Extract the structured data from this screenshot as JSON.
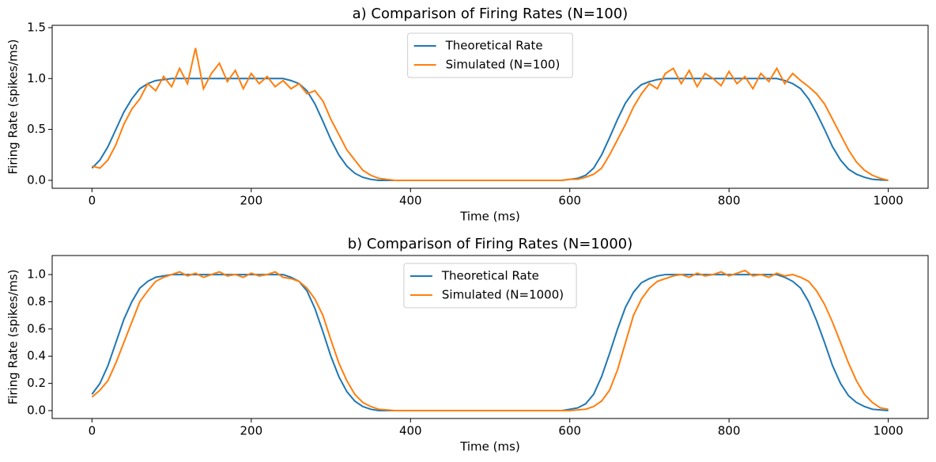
{
  "chart_data": [
    {
      "type": "line",
      "title": "a) Comparison of Firing Rates (N=100)",
      "xlabel": "Time (ms)",
      "ylabel": "Firing Rate (spikes/ms)",
      "x": [
        0,
        10,
        20,
        30,
        40,
        50,
        60,
        70,
        80,
        90,
        100,
        110,
        120,
        130,
        140,
        150,
        160,
        170,
        180,
        190,
        200,
        210,
        220,
        230,
        240,
        250,
        260,
        270,
        280,
        290,
        300,
        310,
        320,
        330,
        340,
        350,
        360,
        370,
        380,
        390,
        400,
        410,
        420,
        430,
        440,
        450,
        460,
        470,
        480,
        490,
        500,
        510,
        520,
        530,
        540,
        550,
        560,
        570,
        580,
        590,
        600,
        610,
        620,
        630,
        640,
        650,
        660,
        670,
        680,
        690,
        700,
        710,
        720,
        730,
        740,
        750,
        760,
        770,
        780,
        790,
        800,
        810,
        820,
        830,
        840,
        850,
        860,
        870,
        880,
        890,
        900,
        910,
        920,
        930,
        940,
        950,
        960,
        970,
        980,
        990,
        1000
      ],
      "series": [
        {
          "name": "Theoretical Rate",
          "color": "#1f77b4",
          "values": [
            0.12,
            0.2,
            0.33,
            0.5,
            0.67,
            0.8,
            0.9,
            0.95,
            0.98,
            0.99,
            1,
            1,
            1,
            1,
            1,
            1,
            1,
            1,
            1,
            1,
            1,
            1,
            1,
            1,
            1,
            0.98,
            0.95,
            0.88,
            0.75,
            0.58,
            0.4,
            0.25,
            0.14,
            0.07,
            0.03,
            0.01,
            0,
            0,
            0,
            0,
            0,
            0,
            0,
            0,
            0,
            0,
            0,
            0,
            0,
            0,
            0,
            0,
            0,
            0,
            0,
            0,
            0,
            0,
            0,
            0,
            0.01,
            0.02,
            0.05,
            0.12,
            0.25,
            0.42,
            0.6,
            0.76,
            0.87,
            0.94,
            0.97,
            0.99,
            1,
            1,
            1,
            1,
            1,
            1,
            1,
            1,
            1,
            1,
            1,
            1,
            1,
            1,
            1,
            0.98,
            0.95,
            0.9,
            0.8,
            0.66,
            0.5,
            0.33,
            0.2,
            0.11,
            0.06,
            0.03,
            0.01,
            0.005,
            0
          ]
        },
        {
          "name": "Simulated (N=100)",
          "color": "#ff7f0e",
          "values": [
            0.14,
            0.12,
            0.2,
            0.35,
            0.55,
            0.7,
            0.8,
            0.95,
            0.88,
            1.02,
            0.92,
            1.1,
            0.95,
            1.3,
            0.9,
            1.05,
            1.15,
            0.97,
            1.08,
            0.9,
            1.05,
            0.95,
            1.02,
            0.92,
            0.98,
            0.9,
            0.95,
            0.85,
            0.88,
            0.78,
            0.6,
            0.45,
            0.3,
            0.2,
            0.1,
            0.05,
            0.02,
            0.01,
            0,
            0,
            0,
            0,
            0,
            0,
            0,
            0,
            0,
            0,
            0,
            0,
            0,
            0,
            0,
            0,
            0,
            0,
            0,
            0,
            0,
            0,
            0.01,
            0.01,
            0.03,
            0.06,
            0.12,
            0.25,
            0.4,
            0.55,
            0.72,
            0.85,
            0.95,
            0.9,
            1.05,
            1.1,
            0.95,
            1.08,
            0.92,
            1.05,
            1,
            0.93,
            1.07,
            0.95,
            1.02,
            0.9,
            1.05,
            0.97,
            1.1,
            0.95,
            1.05,
            0.98,
            0.92,
            0.85,
            0.75,
            0.6,
            0.45,
            0.3,
            0.18,
            0.1,
            0.05,
            0.02,
            0
          ]
        }
      ],
      "xlim": [
        -50,
        1050
      ],
      "xticks": [
        0,
        200,
        400,
        600,
        800,
        1000
      ],
      "ylim": [
        -0.078,
        1.523
      ],
      "yticks": [
        {
          "value": 0,
          "label": "0.0"
        },
        0.5,
        {
          "value": 1,
          "label": "1.0"
        },
        {
          "value": 1.5,
          "label": "1.5"
        }
      ],
      "legend": "upper center",
      "grid": false
    },
    {
      "type": "line",
      "title": "b) Comparison of Firing Rates (N=1000)",
      "xlabel": "Time (ms)",
      "ylabel": "Firing Rate (spikes/ms)",
      "x": [
        0,
        10,
        20,
        30,
        40,
        50,
        60,
        70,
        80,
        90,
        100,
        110,
        120,
        130,
        140,
        150,
        160,
        170,
        180,
        190,
        200,
        210,
        220,
        230,
        240,
        250,
        260,
        270,
        280,
        290,
        300,
        310,
        320,
        330,
        340,
        350,
        360,
        370,
        380,
        390,
        400,
        410,
        420,
        430,
        440,
        450,
        460,
        470,
        480,
        490,
        500,
        510,
        520,
        530,
        540,
        550,
        560,
        570,
        580,
        590,
        600,
        610,
        620,
        630,
        640,
        650,
        660,
        670,
        680,
        690,
        700,
        710,
        720,
        730,
        740,
        750,
        760,
        770,
        780,
        790,
        800,
        810,
        820,
        830,
        840,
        850,
        860,
        870,
        880,
        890,
        900,
        910,
        920,
        930,
        940,
        950,
        960,
        970,
        980,
        990,
        1000
      ],
      "series": [
        {
          "name": "Theoretical Rate",
          "color": "#1f77b4",
          "values": [
            0.12,
            0.2,
            0.33,
            0.5,
            0.67,
            0.8,
            0.9,
            0.95,
            0.98,
            0.99,
            1,
            1,
            1,
            1,
            1,
            1,
            1,
            1,
            1,
            1,
            1,
            1,
            1,
            1,
            1,
            0.98,
            0.95,
            0.88,
            0.75,
            0.58,
            0.4,
            0.25,
            0.14,
            0.07,
            0.03,
            0.01,
            0,
            0,
            0,
            0,
            0,
            0,
            0,
            0,
            0,
            0,
            0,
            0,
            0,
            0,
            0,
            0,
            0,
            0,
            0,
            0,
            0,
            0,
            0,
            0,
            0.01,
            0.02,
            0.05,
            0.12,
            0.25,
            0.42,
            0.6,
            0.76,
            0.87,
            0.94,
            0.97,
            0.99,
            1,
            1,
            1,
            1,
            1,
            1,
            1,
            1,
            1,
            1,
            1,
            1,
            1,
            1,
            1,
            0.98,
            0.95,
            0.9,
            0.8,
            0.66,
            0.5,
            0.33,
            0.2,
            0.11,
            0.06,
            0.03,
            0.01,
            0.005,
            0
          ]
        },
        {
          "name": "Simulated (N=1000)",
          "color": "#ff7f0e",
          "values": [
            0.1,
            0.15,
            0.22,
            0.35,
            0.5,
            0.65,
            0.8,
            0.88,
            0.95,
            0.98,
            1,
            1.02,
            0.99,
            1.01,
            0.98,
            1,
            1.02,
            0.99,
            1,
            0.98,
            1.01,
            0.99,
            1,
            1.02,
            0.98,
            0.97,
            0.95,
            0.9,
            0.82,
            0.7,
            0.52,
            0.35,
            0.22,
            0.12,
            0.06,
            0.03,
            0.01,
            0.005,
            0,
            0,
            0,
            0,
            0,
            0,
            0,
            0,
            0,
            0,
            0,
            0,
            0,
            0,
            0,
            0,
            0,
            0,
            0,
            0,
            0,
            0,
            0,
            0.005,
            0.01,
            0.03,
            0.07,
            0.15,
            0.3,
            0.5,
            0.7,
            0.82,
            0.9,
            0.95,
            0.97,
            0.99,
            1,
            0.98,
            1.01,
            0.99,
            1,
            1.02,
            0.99,
            1.01,
            1.03,
            0.99,
            1,
            0.98,
            1.01,
            0.99,
            1,
            0.98,
            0.95,
            0.88,
            0.78,
            0.65,
            0.5,
            0.35,
            0.22,
            0.12,
            0.06,
            0.02,
            0.01
          ]
        }
      ],
      "xlim": [
        -50,
        1050
      ],
      "xticks": [
        0,
        200,
        400,
        600,
        800,
        1000
      ],
      "ylim": [
        -0.058,
        1.14
      ],
      "yticks": [
        {
          "value": 0,
          "label": "0.0"
        },
        0.2,
        0.4,
        0.6,
        0.8,
        {
          "value": 1,
          "label": "1.0"
        }
      ],
      "legend": "upper center",
      "grid": false
    }
  ]
}
